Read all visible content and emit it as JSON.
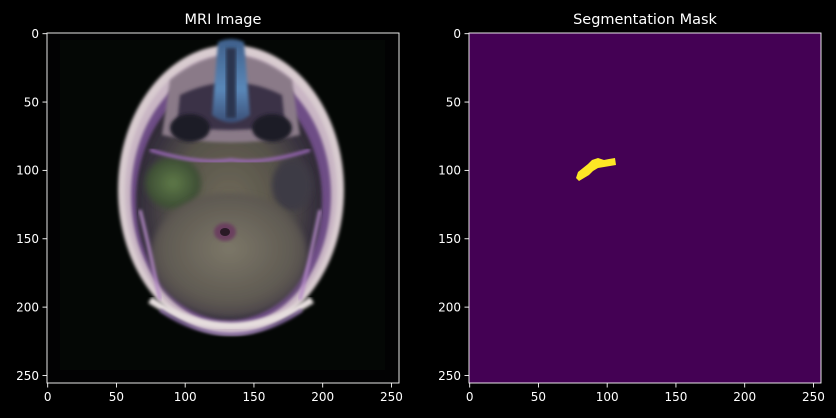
{
  "figure": {
    "background": "#000000",
    "foreground": "#ffffff"
  },
  "panels": [
    {
      "title": "MRI Image",
      "image_kind": "mri-scan",
      "xticks": [
        "0",
        "50",
        "100",
        "150",
        "200",
        "250"
      ],
      "yticks": [
        "0",
        "50",
        "100",
        "150",
        "200",
        "250"
      ],
      "xlim": [
        -0.5,
        255.5
      ],
      "ylim": [
        255.5,
        -0.5
      ]
    },
    {
      "title": "Segmentation Mask",
      "image_kind": "binary-mask",
      "colormap": "viridis",
      "background_color": "#440154",
      "mask_color": "#fde725",
      "xticks": [
        "0",
        "50",
        "100",
        "150",
        "200",
        "250"
      ],
      "yticks": [
        "0",
        "50",
        "100",
        "150",
        "200",
        "250"
      ],
      "xlim": [
        -0.5,
        255.5
      ],
      "ylim": [
        255.5,
        -0.5
      ]
    }
  ]
}
